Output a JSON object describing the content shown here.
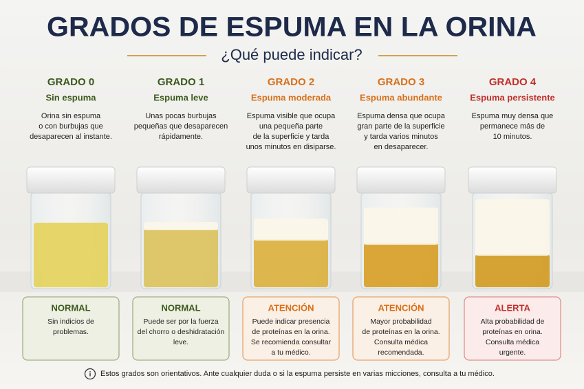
{
  "header": {
    "title": "GRADOS DE ESPUMA EN LA ORINA",
    "subtitle": "¿Qué puede indicar?"
  },
  "grades": [
    {
      "grade": "GRADO 0",
      "name": "Sin espuma",
      "description": [
        "Orina sin espuma",
        "o con burbujas que",
        "desaparecen al instante."
      ],
      "status": "NORMAL",
      "note": [
        "Sin indicios de",
        "problemas."
      ]
    },
    {
      "grade": "GRADO 1",
      "name": "Espuma leve",
      "description": [
        "Unas pocas burbujas",
        "pequeñas que desaparecen",
        "rápidamente."
      ],
      "status": "NORMAL",
      "note": [
        "Puede ser por la fuerza",
        "del chorro o deshidratación",
        "leve."
      ]
    },
    {
      "grade": "GRADO 2",
      "name": "Espuma moderada",
      "description": [
        "Espuma visible que ocupa",
        "una pequeña parte",
        "de la superficie y tarda",
        "unos minutos en disiparse."
      ],
      "status": "ATENCIÓN",
      "note": [
        "Puede indicar presencia",
        "de proteínas en la orina.",
        "Se recomienda consultar",
        "a tu médico."
      ]
    },
    {
      "grade": "GRADO 3",
      "name": "Espuma abundante",
      "description": [
        "Espuma densa que ocupa",
        "gran parte de la superficie",
        "y tarda varios minutos",
        "en desaparecer."
      ],
      "status": "ATENCIÓN",
      "note": [
        "Mayor probabilidad",
        "de proteínas en la orina.",
        "Consulta médica",
        "recomendada."
      ]
    },
    {
      "grade": "GRADO 4",
      "name": "Espuma persistente",
      "description": [
        "Espuma muy densa que",
        "permanece más de",
        "10 minutos."
      ],
      "status": "ALERTA",
      "note": [
        "Alta probabilidad de",
        "proteínas en orina.",
        "Consulta médica",
        "urgente."
      ]
    }
  ],
  "footer": {
    "note": "Estos grados son orientativos. Ante cualquier duda o si la espuma persiste en varias micciones, consulta a tu médico."
  }
}
